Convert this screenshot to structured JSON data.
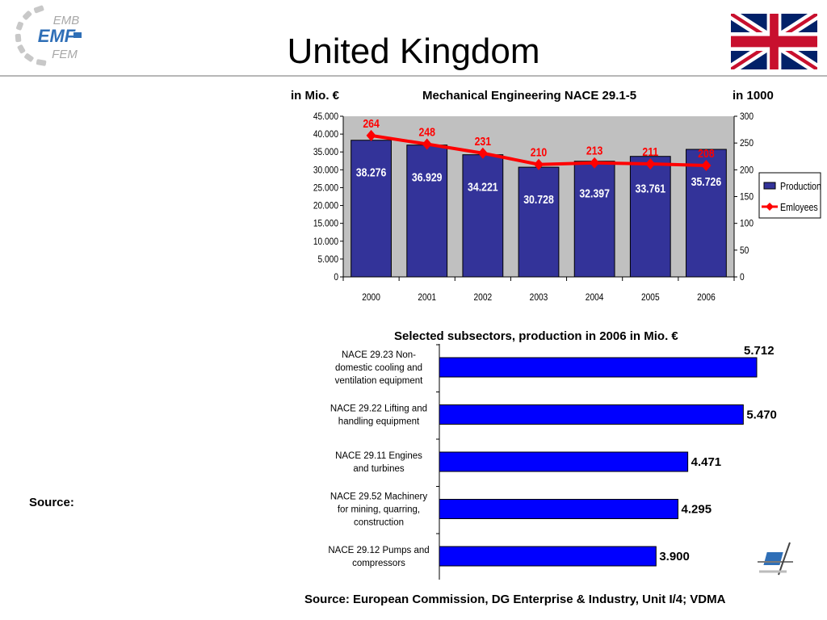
{
  "logo": {
    "line1": "EMB",
    "line2": "EMF",
    "line3": "FEM"
  },
  "page_title": "United Kingdom",
  "flag_icon": "uk-flag-icon",
  "emblem_icon": "stylized-e-emblem-icon",
  "source_left": "Source:",
  "source_bottom": "Source: European Commission, DG Enterprise & Industry, Unit I/4; VDMA",
  "colors": {
    "bar": "#333399",
    "line": "#ff0000",
    "plot_bg": "#c0c0c0",
    "hbar": "#0000ff"
  },
  "chart_data": [
    {
      "type": "bar",
      "title": "Mechanical Engineering NACE 29.1-5",
      "left_axis_label": "in Mio. €",
      "right_axis_label": "in 1000",
      "categories": [
        "2000",
        "2001",
        "2002",
        "2003",
        "2004",
        "2005",
        "2006"
      ],
      "series": [
        {
          "name": "Production",
          "type": "bar",
          "axis": "left",
          "values": [
            38276,
            36929,
            34221,
            30728,
            32397,
            33761,
            35726
          ],
          "labels": [
            "38.276",
            "36.929",
            "34.221",
            "30.728",
            "32.397",
            "33.761",
            "35.726"
          ]
        },
        {
          "name": "Emloyees",
          "type": "line",
          "axis": "right",
          "values": [
            264,
            248,
            231,
            210,
            213,
            211,
            208
          ],
          "labels": [
            "264",
            "248",
            "231",
            "210",
            "213",
            "211",
            "208"
          ]
        }
      ],
      "ylim_left": [
        0,
        45000
      ],
      "ylim_right": [
        0,
        300
      ],
      "left_ticks": [
        "0",
        "5.000",
        "10.000",
        "15.000",
        "20.000",
        "25.000",
        "30.000",
        "35.000",
        "40.000",
        "45.000"
      ],
      "right_ticks": [
        "0",
        "50",
        "100",
        "150",
        "200",
        "250",
        "300"
      ],
      "legend_position": "right",
      "grid": false
    },
    {
      "type": "bar",
      "orientation": "horizontal",
      "title": "Selected subsectors, production in 2006 in Mio. €",
      "categories": [
        [
          "NACE 29.23 Non-",
          "domestic cooling and",
          "ventilation equipment"
        ],
        [
          "NACE 29.22 Lifting and",
          "handling equipment"
        ],
        [
          "NACE 29.11 Engines",
          "and turbines"
        ],
        [
          "NACE 29.52 Machinery",
          "for mining, quarring,",
          "construction"
        ],
        [
          "NACE 29.12 Pumps and",
          "compressors"
        ]
      ],
      "values": [
        5712,
        5470,
        4471,
        4295,
        3900
      ],
      "labels": [
        "5.712",
        "5.470",
        "4.471",
        "4.295",
        "3.900"
      ],
      "xlim": [
        0,
        5900
      ]
    }
  ]
}
